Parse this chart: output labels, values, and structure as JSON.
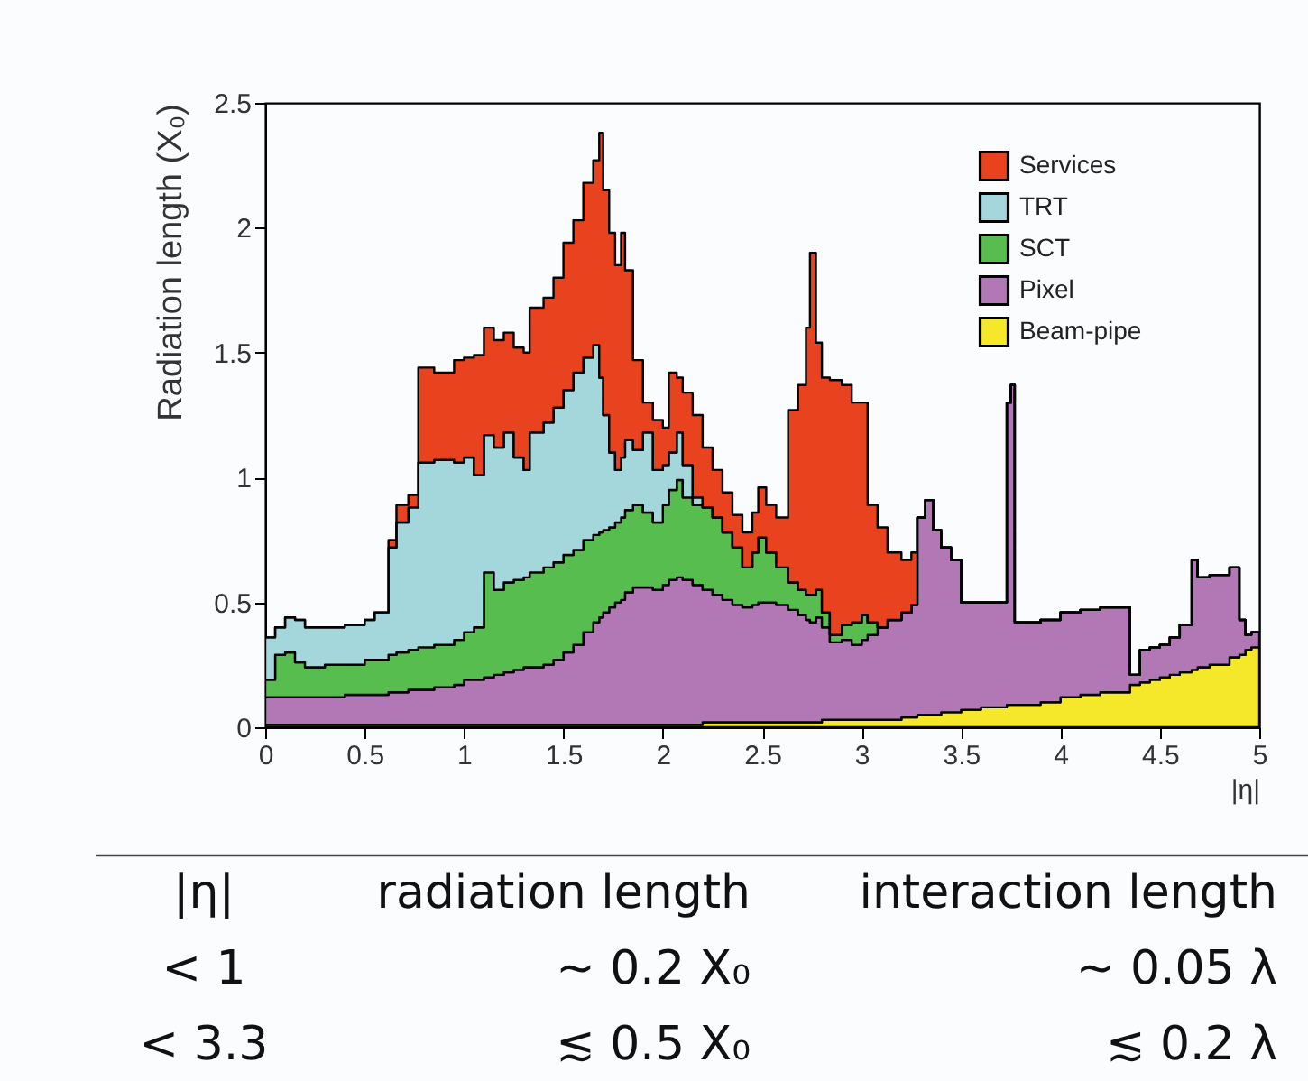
{
  "chart_data": {
    "type": "area",
    "stacked": true,
    "xlabel": "|η|",
    "ylabel": "Radiation length (X₀)",
    "xlim": [
      0,
      5
    ],
    "ylim": [
      0,
      2.5
    ],
    "xticks": [
      0,
      0.5,
      1,
      1.5,
      2,
      2.5,
      3,
      3.5,
      4,
      4.5,
      5
    ],
    "yticks": [
      0,
      0.5,
      1,
      1.5,
      2,
      2.5
    ],
    "legend": "top right",
    "x": [
      0,
      0.05,
      0.1,
      0.15,
      0.2,
      0.3,
      0.4,
      0.5,
      0.55,
      0.62,
      0.66,
      0.72,
      0.77,
      0.85,
      0.95,
      1,
      1.05,
      1.1,
      1.15,
      1.2,
      1.25,
      1.3,
      1.33,
      1.4,
      1.45,
      1.5,
      1.55,
      1.6,
      1.65,
      1.68,
      1.7,
      1.73,
      1.76,
      1.79,
      1.81,
      1.85,
      1.9,
      1.95,
      2,
      2.03,
      2.07,
      2.1,
      2.15,
      2.2,
      2.25,
      2.3,
      2.35,
      2.4,
      2.45,
      2.48,
      2.52,
      2.57,
      2.63,
      2.68,
      2.72,
      2.74,
      2.77,
      2.8,
      2.84,
      2.9,
      2.95,
      3,
      3.03,
      3.08,
      3.13,
      3.2,
      3.25,
      3.28,
      3.32,
      3.36,
      3.4,
      3.45,
      3.5,
      3.6,
      3.73,
      3.75,
      3.77,
      3.9,
      4,
      4.1,
      4.2,
      4.35,
      4.4,
      4.45,
      4.5,
      4.55,
      4.6,
      4.66,
      4.69,
      4.75,
      4.85,
      4.9,
      4.93,
      4.96,
      5
    ],
    "series": [
      {
        "name": "Beam-pipe",
        "color": "#f5e82a",
        "values": [
          0.01,
          0.01,
          0.01,
          0.01,
          0.01,
          0.01,
          0.01,
          0.01,
          0.01,
          0.01,
          0.01,
          0.01,
          0.01,
          0.01,
          0.01,
          0.01,
          0.01,
          0.01,
          0.01,
          0.01,
          0.01,
          0.01,
          0.01,
          0.01,
          0.01,
          0.01,
          0.01,
          0.01,
          0.01,
          0.01,
          0.01,
          0.01,
          0.01,
          0.01,
          0.01,
          0.01,
          0.01,
          0.01,
          0.01,
          0.01,
          0.01,
          0.01,
          0.01,
          0.02,
          0.02,
          0.02,
          0.02,
          0.02,
          0.02,
          0.02,
          0.02,
          0.02,
          0.02,
          0.02,
          0.02,
          0.02,
          0.02,
          0.03,
          0.03,
          0.03,
          0.03,
          0.03,
          0.03,
          0.03,
          0.03,
          0.04,
          0.04,
          0.05,
          0.05,
          0.05,
          0.06,
          0.06,
          0.07,
          0.08,
          0.09,
          0.09,
          0.09,
          0.1,
          0.12,
          0.13,
          0.14,
          0.17,
          0.18,
          0.19,
          0.2,
          0.21,
          0.22,
          0.23,
          0.24,
          0.25,
          0.28,
          0.29,
          0.31,
          0.32,
          0.33
        ]
      },
      {
        "name": "Pixel",
        "color": "#b178b5",
        "values": [
          0.11,
          0.11,
          0.11,
          0.11,
          0.11,
          0.11,
          0.12,
          0.12,
          0.12,
          0.13,
          0.13,
          0.14,
          0.14,
          0.15,
          0.16,
          0.18,
          0.18,
          0.19,
          0.2,
          0.21,
          0.22,
          0.23,
          0.23,
          0.24,
          0.26,
          0.29,
          0.32,
          0.37,
          0.41,
          0.43,
          0.45,
          0.47,
          0.49,
          0.5,
          0.53,
          0.55,
          0.55,
          0.54,
          0.56,
          0.58,
          0.59,
          0.58,
          0.56,
          0.53,
          0.51,
          0.49,
          0.47,
          0.46,
          0.47,
          0.48,
          0.48,
          0.47,
          0.45,
          0.43,
          0.41,
          0.4,
          0.42,
          0.37,
          0.31,
          0.32,
          0.3,
          0.32,
          0.34,
          0.37,
          0.4,
          0.42,
          0.45,
          0.79,
          0.86,
          0.74,
          0.66,
          0.61,
          0.43,
          0.42,
          1.21,
          1.28,
          0.33,
          0.33,
          0.34,
          0.34,
          0.34,
          0.04,
          0.13,
          0.13,
          0.13,
          0.15,
          0.19,
          0.44,
          0.36,
          0.36,
          0.36,
          0.14,
          0.06,
          0.06,
          0.05
        ]
      },
      {
        "name": "SCT",
        "color": "#58bd4f",
        "values": [
          0.07,
          0.17,
          0.18,
          0.14,
          0.12,
          0.13,
          0.12,
          0.14,
          0.14,
          0.15,
          0.16,
          0.16,
          0.17,
          0.17,
          0.18,
          0.19,
          0.21,
          0.42,
          0.34,
          0.36,
          0.36,
          0.36,
          0.38,
          0.39,
          0.39,
          0.39,
          0.38,
          0.37,
          0.35,
          0.34,
          0.33,
          0.32,
          0.32,
          0.33,
          0.33,
          0.33,
          0.3,
          0.27,
          0.32,
          0.36,
          0.39,
          0.33,
          0.32,
          0.33,
          0.31,
          0.27,
          0.23,
          0.16,
          0.21,
          0.26,
          0.2,
          0.15,
          0.11,
          0.1,
          0.1,
          0.11,
          0.11,
          0.06,
          0.03,
          0.06,
          0.09,
          0.1,
          0.05,
          0,
          0,
          0,
          0,
          0,
          0,
          0,
          0,
          0,
          0,
          0,
          0,
          0,
          0,
          0,
          0,
          0,
          0,
          0,
          0,
          0,
          0,
          0,
          0,
          0,
          0,
          0,
          0,
          0,
          0,
          0,
          0
        ]
      },
      {
        "name": "TRT",
        "color": "#a3d7dc",
        "values": [
          0.17,
          0.11,
          0.14,
          0.17,
          0.16,
          0.15,
          0.16,
          0.16,
          0.19,
          0.43,
          0.52,
          0.57,
          0.74,
          0.74,
          0.71,
          0.7,
          0.61,
          0.55,
          0.57,
          0.6,
          0.49,
          0.43,
          0.56,
          0.58,
          0.62,
          0.66,
          0.71,
          0.73,
          0.76,
          0.62,
          0.46,
          0.3,
          0.21,
          0.24,
          0.28,
          0.22,
          0.32,
          0.21,
          0.16,
          0.15,
          0.19,
          0.13,
          0.03,
          0,
          0,
          0,
          0,
          0,
          0,
          0,
          0,
          0,
          0,
          0,
          0,
          0,
          0,
          0,
          0,
          0,
          0,
          0,
          0,
          0,
          0,
          0,
          0,
          0,
          0,
          0,
          0,
          0,
          0,
          0,
          0,
          0,
          0,
          0,
          0,
          0,
          0,
          0,
          0,
          0,
          0,
          0,
          0,
          0,
          0,
          0,
          0,
          0,
          0,
          0,
          0
        ]
      },
      {
        "name": "Services",
        "color": "#e8431e",
        "values": [
          0,
          0,
          0,
          0,
          0,
          0,
          0,
          0,
          0,
          0.03,
          0.07,
          0.05,
          0.38,
          0.35,
          0.41,
          0.4,
          0.48,
          0.43,
          0.43,
          0.4,
          0.44,
          0.47,
          0.5,
          0.5,
          0.52,
          0.59,
          0.61,
          0.7,
          0.74,
          0.98,
          0.9,
          0.88,
          0.82,
          0.9,
          0.68,
          0.36,
          0.12,
          0.2,
          0.15,
          0.32,
          0.22,
          0.29,
          0.33,
          0.24,
          0.19,
          0.16,
          0.13,
          0.14,
          0.16,
          0.2,
          0.19,
          0.2,
          0.69,
          0.82,
          1.07,
          1.37,
          0.99,
          0.94,
          1.02,
          0.96,
          0.88,
          0.85,
          0.47,
          0.4,
          0.27,
          0.21,
          0.21,
          0,
          0,
          0,
          0,
          0,
          0,
          0,
          0,
          0,
          0,
          0,
          0,
          0,
          0,
          0,
          0,
          0,
          0,
          0,
          0,
          0,
          0,
          0,
          0,
          0,
          0,
          0,
          0
        ]
      }
    ],
    "annotations": [
      "|η|",
      "radiation length",
      "interaction length",
      "< 1",
      "∼ 0.2 X₀",
      "∼ 0.05 λ",
      "< 3.3",
      "≲ 0.5 X₀",
      "≲ 0.2 λ"
    ]
  }
}
